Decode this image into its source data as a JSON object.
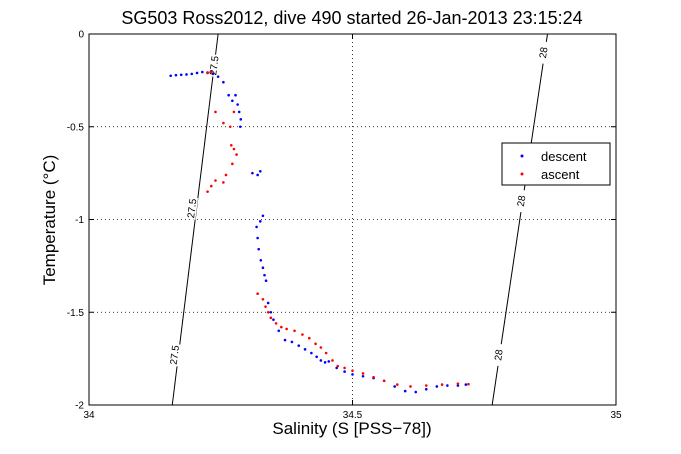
{
  "chart_data": {
    "type": "scatter",
    "title": "SG503 Ross2012, dive 490 started 26-Jan-2013 23:15:24",
    "xlabel": "Salinity (S [PSS−78])",
    "ylabel": "Temperature (°C)",
    "xlim": [
      34,
      35
    ],
    "ylim": [
      -2,
      0
    ],
    "xticks": [
      34,
      34.5,
      35
    ],
    "xtick_labels": [
      "34",
      "34.5",
      "35"
    ],
    "yticks": [
      0,
      -0.5,
      -1,
      -1.5,
      -2
    ],
    "ytick_labels": [
      "0",
      "-0.5",
      "-1",
      "-1.5",
      "-2"
    ],
    "grid": true,
    "legend_position": "right",
    "series": [
      {
        "name": "descent",
        "color": "#0000ff",
        "points": [
          [
            34.155,
            -0.225
          ],
          [
            34.165,
            -0.222
          ],
          [
            34.175,
            -0.22
          ],
          [
            34.185,
            -0.218
          ],
          [
            34.195,
            -0.215
          ],
          [
            34.205,
            -0.21
          ],
          [
            34.215,
            -0.205
          ],
          [
            34.225,
            -0.208
          ],
          [
            34.235,
            -0.215
          ],
          [
            34.245,
            -0.23
          ],
          [
            34.255,
            -0.26
          ],
          [
            34.265,
            -0.33
          ],
          [
            34.272,
            -0.36
          ],
          [
            34.278,
            -0.33
          ],
          [
            34.282,
            -0.38
          ],
          [
            34.285,
            -0.42
          ],
          [
            34.288,
            -0.46
          ],
          [
            34.287,
            -0.5
          ],
          [
            34.325,
            -0.74
          ],
          [
            34.32,
            -0.76
          ],
          [
            34.31,
            -0.75
          ],
          [
            34.33,
            -0.98
          ],
          [
            34.325,
            -1.01
          ],
          [
            34.318,
            -1.04
          ],
          [
            34.32,
            -1.1
          ],
          [
            34.322,
            -1.16
          ],
          [
            34.326,
            -1.22
          ],
          [
            34.33,
            -1.26
          ],
          [
            34.333,
            -1.3
          ],
          [
            34.336,
            -1.33
          ],
          [
            34.34,
            -1.45
          ],
          [
            34.345,
            -1.5
          ],
          [
            34.35,
            -1.54
          ],
          [
            34.36,
            -1.6
          ],
          [
            34.372,
            -1.65
          ],
          [
            34.385,
            -1.66
          ],
          [
            34.398,
            -1.68
          ],
          [
            34.41,
            -1.7
          ],
          [
            34.422,
            -1.72
          ],
          [
            34.432,
            -1.74
          ],
          [
            34.44,
            -1.76
          ],
          [
            34.448,
            -1.77
          ],
          [
            34.455,
            -1.765
          ],
          [
            34.47,
            -1.8
          ],
          [
            34.485,
            -1.82
          ],
          [
            34.5,
            -1.835
          ],
          [
            34.52,
            -1.845
          ],
          [
            34.54,
            -1.855
          ],
          [
            34.56,
            -1.87
          ],
          [
            34.58,
            -1.9
          ],
          [
            34.6,
            -1.925
          ],
          [
            34.62,
            -1.93
          ],
          [
            34.64,
            -1.915
          ],
          [
            34.66,
            -1.9
          ],
          [
            34.68,
            -1.895
          ],
          [
            34.7,
            -1.895
          ],
          [
            34.715,
            -1.89
          ]
        ]
      },
      {
        "name": "ascent",
        "color": "#ff0000",
        "points": [
          [
            34.225,
            -0.21
          ],
          [
            34.232,
            -0.205
          ],
          [
            34.24,
            -0.42
          ],
          [
            34.255,
            -0.48
          ],
          [
            34.268,
            -0.5
          ],
          [
            34.275,
            -0.42
          ],
          [
            34.27,
            -0.6
          ],
          [
            34.275,
            -0.62
          ],
          [
            34.28,
            -0.65
          ],
          [
            34.272,
            -0.7
          ],
          [
            34.26,
            -0.76
          ],
          [
            34.255,
            -0.8
          ],
          [
            34.24,
            -0.79
          ],
          [
            34.232,
            -0.82
          ],
          [
            34.225,
            -0.85
          ],
          [
            34.32,
            -1.4
          ],
          [
            34.33,
            -1.43
          ],
          [
            34.335,
            -1.47
          ],
          [
            34.34,
            -1.5
          ],
          [
            34.345,
            -1.53
          ],
          [
            34.355,
            -1.56
          ],
          [
            34.365,
            -1.58
          ],
          [
            34.375,
            -1.59
          ],
          [
            34.39,
            -1.6
          ],
          [
            34.405,
            -1.62
          ],
          [
            34.418,
            -1.64
          ],
          [
            34.43,
            -1.67
          ],
          [
            34.44,
            -1.69
          ],
          [
            34.45,
            -1.72
          ],
          [
            34.462,
            -1.76
          ],
          [
            34.472,
            -1.79
          ],
          [
            34.485,
            -1.8
          ],
          [
            34.5,
            -1.815
          ],
          [
            34.52,
            -1.83
          ],
          [
            34.54,
            -1.85
          ],
          [
            34.56,
            -1.87
          ],
          [
            34.585,
            -1.89
          ],
          [
            34.61,
            -1.9
          ],
          [
            34.64,
            -1.895
          ],
          [
            34.67,
            -1.89
          ],
          [
            34.7,
            -1.885
          ],
          [
            34.72,
            -1.888
          ]
        ]
      }
    ],
    "isopycnals": [
      {
        "label": "27.5",
        "from": [
          34.158,
          -2.0
        ],
        "to": [
          34.245,
          0.0
        ],
        "label_positions": [
          [
            34.237,
            -0.17
          ],
          [
            34.195,
            -0.94
          ],
          [
            34.162,
            -1.73
          ]
        ]
      },
      {
        "label": "28",
        "from": [
          34.765,
          -2.0
        ],
        "to": [
          34.87,
          0.0
        ],
        "label_positions": [
          [
            34.862,
            -0.1
          ],
          [
            34.82,
            -0.9
          ],
          [
            34.777,
            -1.73
          ]
        ]
      }
    ]
  }
}
